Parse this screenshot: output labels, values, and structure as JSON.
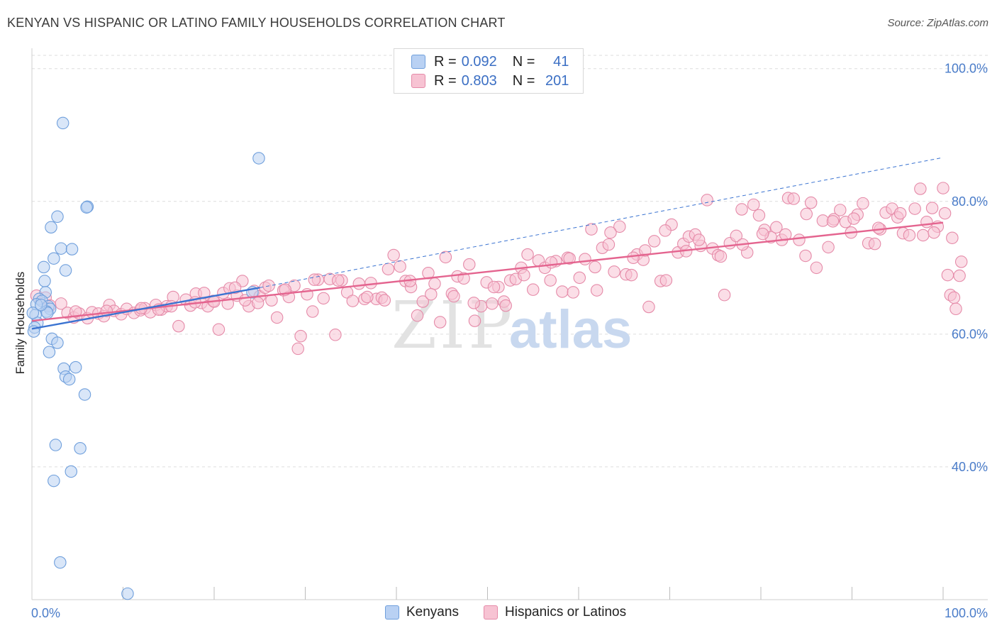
{
  "header": {
    "title": "KENYAN VS HISPANIC OR LATINO FAMILY HOUSEHOLDS CORRELATION CHART",
    "source": "Source: ZipAtlas.com"
  },
  "legend_top": {
    "rows": [
      {
        "r_label": "R =",
        "r_value": "0.092",
        "n_label": "N =",
        "n_value": "41"
      },
      {
        "r_label": "R =",
        "r_value": "0.803",
        "n_label": "N =",
        "n_value": "201"
      }
    ]
  },
  "legend_bottom": {
    "items": [
      {
        "label": "Kenyans"
      },
      {
        "label": "Hispanics or Latinos"
      }
    ]
  },
  "watermark": {
    "zip": "ZIP",
    "atlas": "atlas"
  },
  "colors": {
    "blue_fill": "#b9d1f3",
    "blue_stroke": "#6f9fdc",
    "blue_line": "#3a73d1",
    "pink_fill": "#f7c3d3",
    "pink_stroke": "#e58aa8",
    "pink_line": "#e4648f",
    "grid": "#dddddd",
    "axis_text": "#4a7cc9"
  },
  "chart_data": {
    "type": "scatter",
    "title": "KENYAN VS HISPANIC OR LATINO FAMILY HOUSEHOLDS CORRELATION CHART",
    "xlabel": "",
    "ylabel": "Family Households",
    "xlim": [
      0,
      100
    ],
    "ylim": [
      20,
      102
    ],
    "x_tick_labels": [
      "0.0%",
      "100.0%"
    ],
    "y_ticks": [
      40,
      60,
      80,
      100
    ],
    "y_tick_labels": [
      "40.0%",
      "60.0%",
      "80.0%",
      "100.0%"
    ],
    "grid": true,
    "series": [
      {
        "name": "Kenyans",
        "R": 0.092,
        "N": 41,
        "points": [
          [
            3.4,
            91.8
          ],
          [
            24.9,
            86.5
          ],
          [
            6.1,
            79.2
          ],
          [
            6.0,
            79.1
          ],
          [
            2.8,
            77.7
          ],
          [
            2.1,
            76.1
          ],
          [
            3.2,
            72.9
          ],
          [
            4.4,
            72.8
          ],
          [
            2.4,
            71.4
          ],
          [
            1.3,
            70.1
          ],
          [
            3.7,
            69.6
          ],
          [
            1.4,
            68.0
          ],
          [
            1.5,
            66.3
          ],
          [
            0.8,
            65.3
          ],
          [
            1.1,
            65.0
          ],
          [
            0.5,
            64.5
          ],
          [
            1.8,
            64.2
          ],
          [
            2.0,
            63.8
          ],
          [
            1.6,
            63.4
          ],
          [
            1.7,
            63.2
          ],
          [
            0.4,
            62.9
          ],
          [
            0.6,
            61.7
          ],
          [
            0.3,
            61.0
          ],
          [
            0.2,
            60.4
          ],
          [
            2.2,
            59.3
          ],
          [
            2.8,
            58.7
          ],
          [
            1.9,
            57.3
          ],
          [
            3.5,
            54.8
          ],
          [
            4.8,
            55.0
          ],
          [
            3.7,
            53.6
          ],
          [
            4.1,
            53.2
          ],
          [
            5.8,
            50.9
          ],
          [
            2.6,
            43.3
          ],
          [
            5.3,
            42.8
          ],
          [
            4.3,
            39.3
          ],
          [
            2.4,
            37.9
          ],
          [
            3.1,
            25.6
          ],
          [
            10.5,
            20.9
          ],
          [
            0.1,
            63.2
          ],
          [
            1.0,
            64.4
          ],
          [
            24.2,
            66.3
          ]
        ],
        "trend": {
          "x": [
            0,
            25
          ],
          "y": [
            60.8,
            67.0
          ],
          "style": "solid"
        },
        "trend_extension": {
          "x": [
            25,
            100
          ],
          "y": [
            67.0,
            86.6
          ],
          "style": "dashed"
        }
      },
      {
        "name": "Hispanics or Latinos",
        "R": 0.803,
        "N": 201,
        "points": [
          [
            0.5,
            65.8
          ],
          [
            1.5,
            65.5
          ],
          [
            2.0,
            64.3
          ],
          [
            3.2,
            64.6
          ],
          [
            3.9,
            63.2
          ],
          [
            4.6,
            62.5
          ],
          [
            5.2,
            63.1
          ],
          [
            6.1,
            62.4
          ],
          [
            6.6,
            63.3
          ],
          [
            7.3,
            63.1
          ],
          [
            7.9,
            62.7
          ],
          [
            8.5,
            64.4
          ],
          [
            9.0,
            63.5
          ],
          [
            9.8,
            63.0
          ],
          [
            10.4,
            63.8
          ],
          [
            11.2,
            63.2
          ],
          [
            11.9,
            63.6
          ],
          [
            12.4,
            63.9
          ],
          [
            13.0,
            63.3
          ],
          [
            13.6,
            64.4
          ],
          [
            14.2,
            63.7
          ],
          [
            14.8,
            64.2
          ],
          [
            15.5,
            65.6
          ],
          [
            16.1,
            61.2
          ],
          [
            16.9,
            65.2
          ],
          [
            17.4,
            64.3
          ],
          [
            18.0,
            66.1
          ],
          [
            18.6,
            64.7
          ],
          [
            19.3,
            64.2
          ],
          [
            19.9,
            65.0
          ],
          [
            20.5,
            60.7
          ],
          [
            21.0,
            66.2
          ],
          [
            21.7,
            66.9
          ],
          [
            22.5,
            65.8
          ],
          [
            23.1,
            68.0
          ],
          [
            23.8,
            64.2
          ],
          [
            24.4,
            66.5
          ],
          [
            25.0,
            65.7
          ],
          [
            25.6,
            67.0
          ],
          [
            26.3,
            65.1
          ],
          [
            26.9,
            62.5
          ],
          [
            27.6,
            66.6
          ],
          [
            28.2,
            65.6
          ],
          [
            28.8,
            67.3
          ],
          [
            29.5,
            59.7
          ],
          [
            30.2,
            66.0
          ],
          [
            30.8,
            63.4
          ],
          [
            31.4,
            68.2
          ],
          [
            32.0,
            65.4
          ],
          [
            32.7,
            68.3
          ],
          [
            33.3,
            59.9
          ],
          [
            34.0,
            68.1
          ],
          [
            34.6,
            66.3
          ],
          [
            35.2,
            65.0
          ],
          [
            35.9,
            67.6
          ],
          [
            36.5,
            65.3
          ],
          [
            37.2,
            67.7
          ],
          [
            37.8,
            65.3
          ],
          [
            38.4,
            65.5
          ],
          [
            39.1,
            69.8
          ],
          [
            39.7,
            71.9
          ],
          [
            40.4,
            70.2
          ],
          [
            41.0,
            68.0
          ],
          [
            41.6,
            67.1
          ],
          [
            42.3,
            62.8
          ],
          [
            42.9,
            64.9
          ],
          [
            43.5,
            69.2
          ],
          [
            44.2,
            67.6
          ],
          [
            44.8,
            61.8
          ],
          [
            45.4,
            71.6
          ],
          [
            46.1,
            66.1
          ],
          [
            46.7,
            68.7
          ],
          [
            47.4,
            68.4
          ],
          [
            48.0,
            70.5
          ],
          [
            48.6,
            62.0
          ],
          [
            49.3,
            64.2
          ],
          [
            49.9,
            67.8
          ],
          [
            50.5,
            64.6
          ],
          [
            51.2,
            67.1
          ],
          [
            51.8,
            64.9
          ],
          [
            52.5,
            68.1
          ],
          [
            53.1,
            68.3
          ],
          [
            53.7,
            70.0
          ],
          [
            54.4,
            72.0
          ],
          [
            55.0,
            66.7
          ],
          [
            55.6,
            71.1
          ],
          [
            56.3,
            70.0
          ],
          [
            56.9,
            68.1
          ],
          [
            57.5,
            71.0
          ],
          [
            58.2,
            66.4
          ],
          [
            58.8,
            71.5
          ],
          [
            59.4,
            66.3
          ],
          [
            60.1,
            68.5
          ],
          [
            60.7,
            71.3
          ],
          [
            61.4,
            75.8
          ],
          [
            62.0,
            66.6
          ],
          [
            62.6,
            73.0
          ],
          [
            63.3,
            73.5
          ],
          [
            63.9,
            69.4
          ],
          [
            64.5,
            76.2
          ],
          [
            65.2,
            69.0
          ],
          [
            65.8,
            68.9
          ],
          [
            66.4,
            72.0
          ],
          [
            67.1,
            71.2
          ],
          [
            67.7,
            64.1
          ],
          [
            68.3,
            74.0
          ],
          [
            69.0,
            68.0
          ],
          [
            69.6,
            68.1
          ],
          [
            70.2,
            76.5
          ],
          [
            70.9,
            72.3
          ],
          [
            71.5,
            73.6
          ],
          [
            72.1,
            74.7
          ],
          [
            72.8,
            75.0
          ],
          [
            73.4,
            73.3
          ],
          [
            74.1,
            80.2
          ],
          [
            74.7,
            72.9
          ],
          [
            75.3,
            71.9
          ],
          [
            76.0,
            65.9
          ],
          [
            76.6,
            73.7
          ],
          [
            77.3,
            74.8
          ],
          [
            77.9,
            78.8
          ],
          [
            78.5,
            72.3
          ],
          [
            79.2,
            79.5
          ],
          [
            79.8,
            77.9
          ],
          [
            80.4,
            75.7
          ],
          [
            81.1,
            74.6
          ],
          [
            81.7,
            76.1
          ],
          [
            82.3,
            74.2
          ],
          [
            83.0,
            80.5
          ],
          [
            83.6,
            80.4
          ],
          [
            84.2,
            74.2
          ],
          [
            84.9,
            71.8
          ],
          [
            85.5,
            79.8
          ],
          [
            86.1,
            70.0
          ],
          [
            86.8,
            77.1
          ],
          [
            87.4,
            73.1
          ],
          [
            88.0,
            77.3
          ],
          [
            88.7,
            78.7
          ],
          [
            89.3,
            76.9
          ],
          [
            89.9,
            75.3
          ],
          [
            90.6,
            78.0
          ],
          [
            91.2,
            79.7
          ],
          [
            91.8,
            73.7
          ],
          [
            92.5,
            73.6
          ],
          [
            93.1,
            75.8
          ],
          [
            93.7,
            78.3
          ],
          [
            94.4,
            78.9
          ],
          [
            95.0,
            77.6
          ],
          [
            95.6,
            75.2
          ],
          [
            96.3,
            74.9
          ],
          [
            96.9,
            78.9
          ],
          [
            97.5,
            81.9
          ],
          [
            98.2,
            76.9
          ],
          [
            98.8,
            79.0
          ],
          [
            99.4,
            76.2
          ],
          [
            100.0,
            82.0
          ],
          [
            100.2,
            78.2
          ],
          [
            100.5,
            68.9
          ],
          [
            100.8,
            65.9
          ],
          [
            101.2,
            65.5
          ],
          [
            101.4,
            63.8
          ],
          [
            101.8,
            68.8
          ],
          [
            102.0,
            70.9
          ],
          [
            15.3,
            64.2
          ],
          [
            17.9,
            64.8
          ],
          [
            20.0,
            64.9
          ],
          [
            22.3,
            67.0
          ],
          [
            26.0,
            67.3
          ],
          [
            27.8,
            66.7
          ],
          [
            29.2,
            57.8
          ],
          [
            31.0,
            68.2
          ],
          [
            33.6,
            68.1
          ],
          [
            36.8,
            65.6
          ],
          [
            38.7,
            65.1
          ],
          [
            41.5,
            68.0
          ],
          [
            43.8,
            66.0
          ],
          [
            46.3,
            65.7
          ],
          [
            48.5,
            64.7
          ],
          [
            50.7,
            67.1
          ],
          [
            52.0,
            64.3
          ],
          [
            54.0,
            68.9
          ],
          [
            57.0,
            70.8
          ],
          [
            59.0,
            71.4
          ],
          [
            61.8,
            70.1
          ],
          [
            63.5,
            75.3
          ],
          [
            66.0,
            71.5
          ],
          [
            67.3,
            72.6
          ],
          [
            69.5,
            75.6
          ],
          [
            71.8,
            72.5
          ],
          [
            73.2,
            74.2
          ],
          [
            75.6,
            71.7
          ],
          [
            78.0,
            73.5
          ],
          [
            80.2,
            75.1
          ],
          [
            82.7,
            75.0
          ],
          [
            85.0,
            78.1
          ],
          [
            87.9,
            77.0
          ],
          [
            90.2,
            77.4
          ],
          [
            92.9,
            76.0
          ],
          [
            95.3,
            78.2
          ],
          [
            97.8,
            74.9
          ],
          [
            99.0,
            75.3
          ],
          [
            101.0,
            74.5
          ],
          [
            4.8,
            63.4
          ],
          [
            8.2,
            63.5
          ],
          [
            12.0,
            63.9
          ],
          [
            13.9,
            63.7
          ],
          [
            18.9,
            66.2
          ],
          [
            21.5,
            64.6
          ],
          [
            23.4,
            65.1
          ],
          [
            24.8,
            64.7
          ]
        ],
        "trend": {
          "x": [
            0,
            100
          ],
          "y": [
            62.0,
            76.8
          ],
          "style": "solid"
        }
      }
    ]
  }
}
